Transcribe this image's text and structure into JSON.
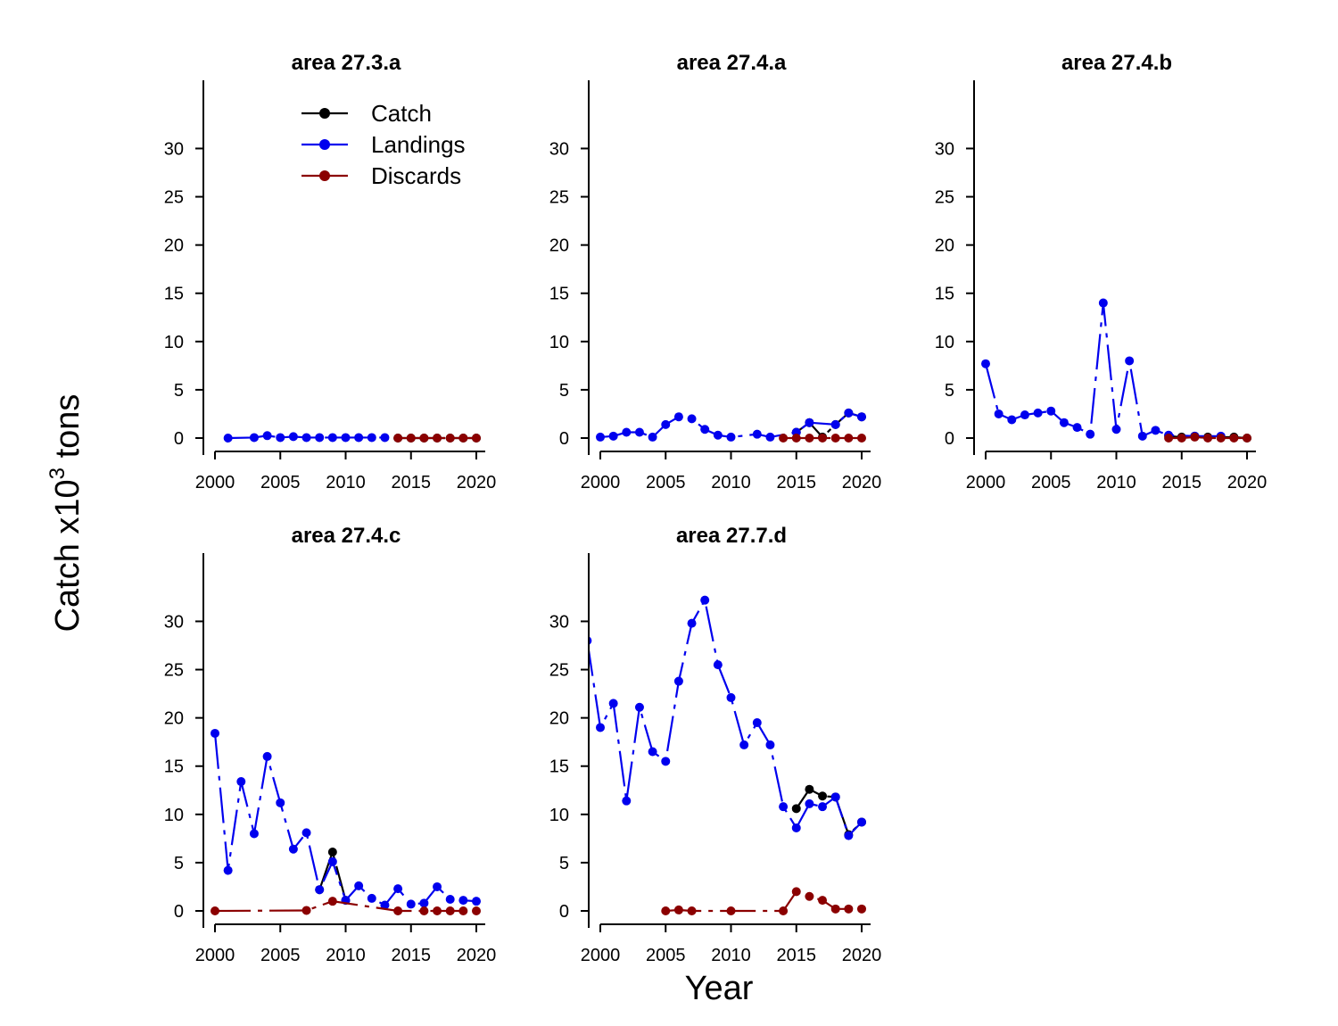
{
  "figure": {
    "ylabel": "Catch x10",
    "ylabel_sup": "3",
    "ylabel_suffix": " tons",
    "xlabel": "Year"
  },
  "colors": {
    "Catch": "#000000",
    "Landings": "#0000ee",
    "Discards": "#8b0000",
    "axis": "#000000"
  },
  "legend": {
    "placement": "top-right of first panel",
    "entries": [
      "Catch",
      "Landings",
      "Discards"
    ]
  },
  "chart_data": [
    {
      "type": "line",
      "title": "area  27.3.a",
      "xlim": [
        2000,
        2020
      ],
      "ylim": [
        0,
        33
      ],
      "xticks": [
        2000,
        2005,
        2010,
        2015,
        2020
      ],
      "yticks": [
        0,
        5,
        10,
        15,
        20,
        25,
        30
      ],
      "series": [
        {
          "name": "Catch",
          "x": [
            2014,
            2015,
            2016,
            2017,
            2018,
            2019,
            2020
          ],
          "y": [
            0,
            0,
            0,
            0,
            0,
            0,
            0
          ]
        },
        {
          "name": "Landings",
          "x": [
            2001,
            2003,
            2004,
            2005,
            2006,
            2007,
            2008,
            2009,
            2010,
            2011,
            2012,
            2013
          ],
          "y": [
            0.0,
            0.05,
            0.25,
            0.05,
            0.15,
            0.05,
            0.05,
            0.05,
            0.05,
            0.05,
            0.05,
            0.05
          ]
        },
        {
          "name": "Discards",
          "x": [
            2014,
            2015,
            2016,
            2017,
            2018,
            2019,
            2020
          ],
          "y": [
            0,
            0,
            0,
            0,
            0,
            0,
            0
          ]
        }
      ]
    },
    {
      "type": "line",
      "title": "area  27.4.a",
      "xlim": [
        2000,
        2020
      ],
      "ylim": [
        0,
        33
      ],
      "xticks": [
        2000,
        2005,
        2010,
        2015,
        2020
      ],
      "yticks": [
        0,
        5,
        10,
        15,
        20,
        25,
        30
      ],
      "series": [
        {
          "name": "Catch",
          "x": [
            2015,
            2016,
            2017,
            2018,
            2019,
            2020
          ],
          "y": [
            0.6,
            1.6,
            0.1,
            1.4,
            2.6,
            2.2
          ]
        },
        {
          "name": "Landings",
          "x": [
            2000,
            2001,
            2002,
            2003,
            2004,
            2005,
            2006,
            2007,
            2008,
            2009,
            2010,
            2012,
            2013,
            2015,
            2016,
            2018,
            2019,
            2020
          ],
          "y": [
            0.1,
            0.2,
            0.6,
            0.6,
            0.1,
            1.4,
            2.2,
            2.0,
            0.9,
            0.3,
            0.1,
            0.4,
            0.1,
            0.6,
            1.6,
            1.4,
            2.6,
            2.2
          ]
        },
        {
          "name": "Discards",
          "x": [
            2014,
            2015,
            2016,
            2017,
            2018,
            2019,
            2020
          ],
          "y": [
            0,
            0,
            0,
            0,
            0,
            0,
            0
          ]
        }
      ]
    },
    {
      "type": "line",
      "title": "area  27.4.b",
      "xlim": [
        2000,
        2020
      ],
      "ylim": [
        0,
        33
      ],
      "xticks": [
        2000,
        2005,
        2010,
        2015,
        2020
      ],
      "yticks": [
        0,
        5,
        10,
        15,
        20,
        25,
        30
      ],
      "series": [
        {
          "name": "Catch",
          "x": [
            2014,
            2015,
            2016,
            2017,
            2018,
            2019,
            2020
          ],
          "y": [
            0.2,
            0.1,
            0.2,
            0.1,
            0.1,
            0.1,
            0.0
          ]
        },
        {
          "name": "Landings",
          "x": [
            2000,
            2001,
            2002,
            2003,
            2004,
            2005,
            2006,
            2007,
            2008,
            2009,
            2010,
            2011,
            2012,
            2013,
            2014,
            2016,
            2018
          ],
          "y": [
            7.7,
            2.5,
            1.9,
            2.4,
            2.6,
            2.8,
            1.6,
            1.1,
            0.4,
            14.0,
            0.9,
            8.0,
            0.2,
            0.8,
            0.3,
            0.2,
            0.2
          ]
        },
        {
          "name": "Discards",
          "x": [
            2014,
            2015,
            2016,
            2017,
            2018,
            2019,
            2020
          ],
          "y": [
            0,
            0,
            0.1,
            0,
            0,
            0,
            0
          ]
        }
      ]
    },
    {
      "type": "line",
      "title": "area  27.4.c",
      "xlim": [
        2000,
        2020
      ],
      "ylim": [
        0,
        33
      ],
      "xticks": [
        2000,
        2005,
        2010,
        2015,
        2020
      ],
      "yticks": [
        0,
        5,
        10,
        15,
        20,
        25,
        30
      ],
      "series": [
        {
          "name": "Catch",
          "x": [
            2008,
            2009,
            2010
          ],
          "y": [
            2.2,
            6.1,
            1.1
          ]
        },
        {
          "name": "Landings",
          "x": [
            2000,
            2001,
            2002,
            2003,
            2004,
            2005,
            2006,
            2007,
            2008,
            2009,
            2010,
            2011,
            2012,
            2013,
            2014,
            2015,
            2016,
            2017,
            2018,
            2019,
            2020
          ],
          "y": [
            18.4,
            4.2,
            13.4,
            8.0,
            16.0,
            11.2,
            6.4,
            8.1,
            2.2,
            5.1,
            1.1,
            2.6,
            1.3,
            0.6,
            2.3,
            0.7,
            0.8,
            2.5,
            1.2,
            1.1,
            1.0
          ]
        },
        {
          "name": "Discards",
          "x": [
            2000,
            2007,
            2009,
            2014,
            2016,
            2017,
            2018,
            2019,
            2020
          ],
          "y": [
            0,
            0.05,
            1.0,
            0,
            0,
            0,
            0,
            0,
            0
          ]
        }
      ]
    },
    {
      "type": "line",
      "title": "area  27.7.d",
      "xlim": [
        2000,
        2020
      ],
      "ylim": [
        0,
        33
      ],
      "xticks": [
        2000,
        2005,
        2010,
        2015,
        2020
      ],
      "yticks": [
        0,
        5,
        10,
        15,
        20,
        25,
        30
      ],
      "series": [
        {
          "name": "Catch",
          "x": [
            2015,
            2016,
            2017,
            2018,
            2019,
            2020
          ],
          "y": [
            10.6,
            12.6,
            11.9,
            11.8,
            7.9,
            9.2
          ]
        },
        {
          "name": "Landings",
          "x": [
            1999,
            2000,
            2001,
            2002,
            2003,
            2004,
            2005,
            2006,
            2007,
            2008,
            2009,
            2010,
            2011,
            2012,
            2013,
            2014,
            2015,
            2016,
            2017,
            2018,
            2019,
            2020
          ],
          "y": [
            28.0,
            19.0,
            21.5,
            11.4,
            21.1,
            16.5,
            15.5,
            23.8,
            29.8,
            32.2,
            25.5,
            22.1,
            17.2,
            19.5,
            17.2,
            10.8,
            8.6,
            11.1,
            10.8,
            11.8,
            7.8,
            9.2
          ]
        },
        {
          "name": "Discards",
          "x": [
            2005,
            2006,
            2007,
            2010,
            2014,
            2015,
            2016,
            2017,
            2018,
            2019,
            2020
          ],
          "y": [
            0,
            0.1,
            0,
            0,
            0,
            2.0,
            1.5,
            1.1,
            0.2,
            0.2,
            0.2
          ]
        }
      ]
    }
  ]
}
